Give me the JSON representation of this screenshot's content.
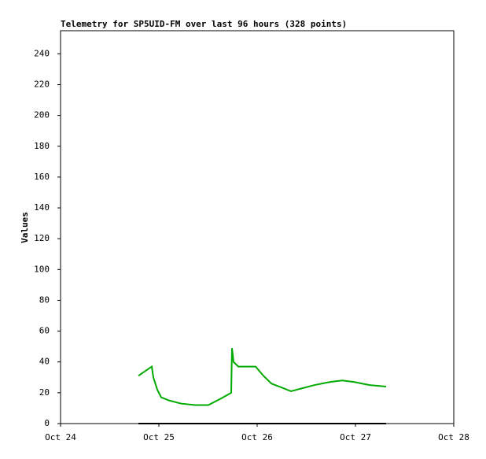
{
  "chart_data": {
    "type": "line",
    "title": "Telemetry for SP5UID-FM over last 96 hours (328 points)",
    "y_label": "Values",
    "xlim": [
      0,
      4
    ],
    "ylim": [
      0,
      255
    ],
    "xticks": [
      {
        "value": 0,
        "label": "Oct 24"
      },
      {
        "value": 1,
        "label": "Oct 25"
      },
      {
        "value": 2,
        "label": "Oct 26"
      },
      {
        "value": 3,
        "label": "Oct 27"
      },
      {
        "value": 4,
        "label": "Oct 28"
      }
    ],
    "yticks": [
      0,
      20,
      40,
      60,
      80,
      100,
      120,
      140,
      160,
      180,
      200,
      220,
      240
    ],
    "series": [
      {
        "color": "#00aa00",
        "x": [
          0.792,
          0.928,
          0.944,
          0.984,
          1.024,
          1.104,
          1.224,
          1.368,
          1.504,
          1.624,
          1.736,
          1.744,
          1.76,
          1.808,
          1.984,
          2.064,
          2.144,
          2.264,
          2.344,
          2.464,
          2.584,
          2.744,
          2.864,
          2.984,
          3.144,
          3.312
        ],
        "values": [
          31,
          37,
          30,
          22,
          17,
          15,
          13,
          12,
          12,
          16,
          20,
          49,
          40,
          37,
          37,
          31,
          26,
          23,
          21,
          23,
          25,
          27,
          28,
          27,
          25,
          24
        ]
      },
      {
        "color": "#000000",
        "x": [
          0.792,
          3.312
        ],
        "values": [
          0,
          0
        ]
      }
    ]
  }
}
